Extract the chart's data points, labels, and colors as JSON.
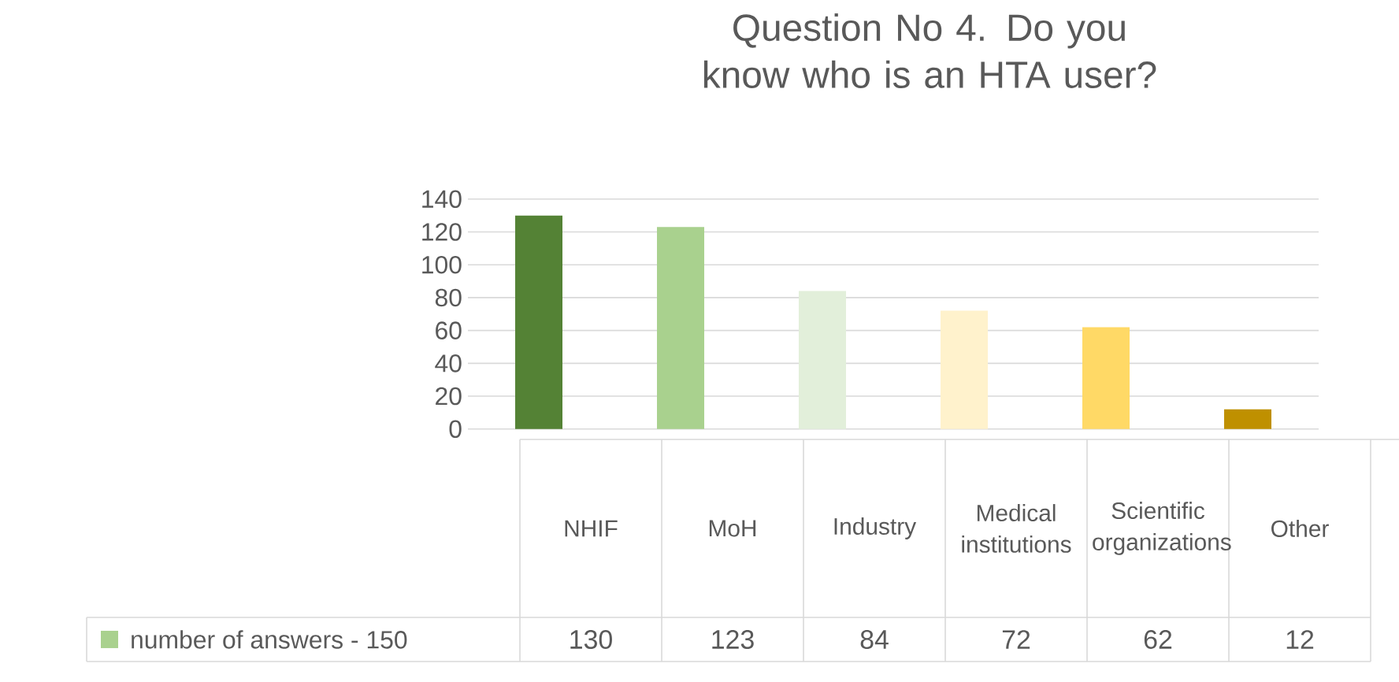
{
  "chart_data": {
    "type": "bar",
    "title": "Question No 4. Do you know who is an HTA user?",
    "categories": [
      "NHIF",
      "MoH",
      "Industry",
      "Medical institutions",
      "Scientific organizations",
      "Other"
    ],
    "series": [
      {
        "name": "number of answers - 150",
        "color": "#a9d18e",
        "colors": [
          "#548235",
          "#a9d18e",
          "#e2efda",
          "#fff2cc",
          "#ffd966",
          "#bf9000"
        ],
        "values": [
          130,
          123,
          84,
          72,
          62,
          12
        ]
      }
    ],
    "ylim": [
      0,
      140
    ],
    "yticks": [
      0,
      20,
      40,
      60,
      80,
      100,
      120,
      140
    ],
    "grid": "y",
    "legend": "bottom",
    "data_labels": true
  }
}
